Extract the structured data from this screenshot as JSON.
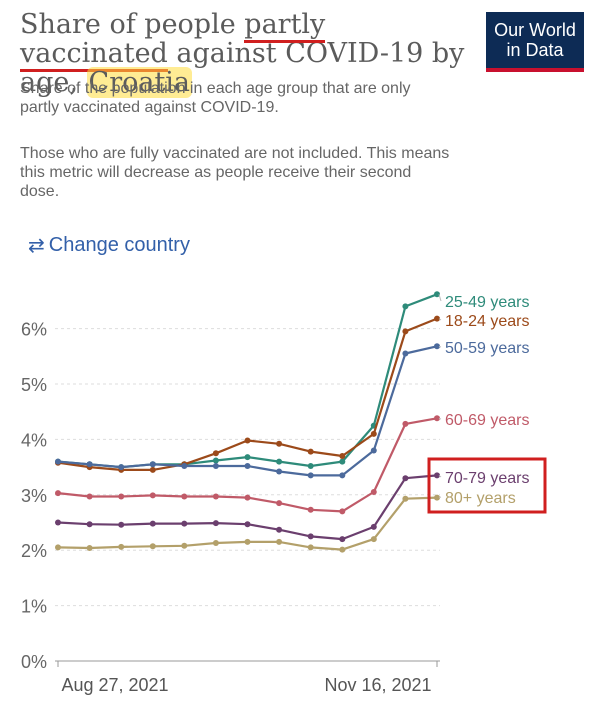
{
  "header": {
    "title_part1": "Share of people ",
    "title_highlight": "partly vaccinated",
    "title_part2": " against COVID-19 by age, ",
    "title_country": "Croatia",
    "subtitle": "Share of the population in each age group that are only partly vaccinated against COVID-19.",
    "note": "Those who are fully vaccinated are not included. This means this metric will decrease as people receive their second dose."
  },
  "logo": {
    "line1": "Our World",
    "line2": "in Data"
  },
  "change_country": {
    "icon": "swap-arrows-icon",
    "label": "Change country"
  },
  "colors": {
    "title_underline": "#d01f1f",
    "title_highlight": "#ffdc3c",
    "annotation_box": "#d01f1f",
    "logo_bg": "#0d2b55"
  },
  "chart_data": {
    "type": "line",
    "x": [
      "2021-08-27",
      "2021-09-03",
      "2021-09-10",
      "2021-09-17",
      "2021-09-24",
      "2021-10-01",
      "2021-10-08",
      "2021-10-15",
      "2021-10-22",
      "2021-10-29",
      "2021-11-05",
      "2021-11-12",
      "2021-11-16"
    ],
    "x_ticks": [
      "Aug 27, 2021",
      "Nov 16, 2021"
    ],
    "y_ticks": [
      "0%",
      "1%",
      "2%",
      "3%",
      "4%",
      "5%",
      "6%"
    ],
    "ylim": [
      0,
      6.8
    ],
    "grid": "horizontal-dashed",
    "legend": "right-labels",
    "series": [
      {
        "name": "25-49 years",
        "color": "#2e8b7a",
        "values": [
          3.6,
          3.55,
          3.5,
          3.55,
          3.55,
          3.62,
          3.68,
          3.6,
          3.52,
          3.6,
          4.25,
          6.4,
          6.62
        ]
      },
      {
        "name": "18-24 years",
        "color": "#9c4a1a",
        "values": [
          3.58,
          3.5,
          3.45,
          3.45,
          3.55,
          3.75,
          3.98,
          3.92,
          3.78,
          3.7,
          4.1,
          5.95,
          6.18
        ]
      },
      {
        "name": "50-59 years",
        "color": "#4c6a9c",
        "values": [
          3.6,
          3.55,
          3.5,
          3.55,
          3.52,
          3.52,
          3.52,
          3.42,
          3.35,
          3.35,
          3.8,
          5.55,
          5.68
        ]
      },
      {
        "name": "60-69 years",
        "color": "#c05a68",
        "values": [
          3.03,
          2.97,
          2.97,
          2.99,
          2.97,
          2.97,
          2.95,
          2.85,
          2.73,
          2.7,
          3.05,
          4.28,
          4.38
        ]
      },
      {
        "name": "70-79 years",
        "color": "#6b3f6e",
        "values": [
          2.5,
          2.47,
          2.46,
          2.48,
          2.48,
          2.49,
          2.47,
          2.37,
          2.25,
          2.2,
          2.42,
          3.3,
          3.35
        ]
      },
      {
        "name": "80+ years",
        "color": "#b3a06a",
        "values": [
          2.05,
          2.04,
          2.06,
          2.07,
          2.08,
          2.13,
          2.15,
          2.15,
          2.05,
          2.01,
          2.2,
          2.93,
          2.95
        ]
      }
    ]
  }
}
